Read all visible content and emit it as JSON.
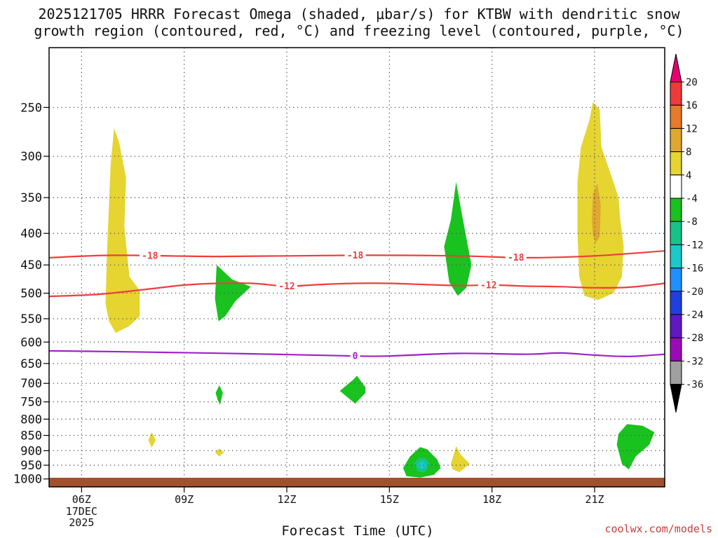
{
  "title": {
    "line1": "2025121705 HRRR Forecast Omega (shaded, μbar/s) for KTBW with dendritic snow",
    "line2": "growth region (contoured, red, °C) and freezing level (contoured, purple, °C)"
  },
  "credit": "coolwx.com/models",
  "chart_data": {
    "type": "contour",
    "xlabel": "Forecast Time (UTC)",
    "ylabel": "",
    "x_ticks": [
      {
        "hour": 6,
        "label": "06Z",
        "sub": [
          "17DEC",
          "2025"
        ]
      },
      {
        "hour": 9,
        "label": "09Z"
      },
      {
        "hour": 12,
        "label": "12Z"
      },
      {
        "hour": 15,
        "label": "15Z"
      },
      {
        "hour": 18,
        "label": "18Z"
      },
      {
        "hour": 21,
        "label": "21Z"
      }
    ],
    "xlim": [
      5.05,
      23.05
    ],
    "ylim": [
      1030,
      200
    ],
    "y_scale": "log-pressure",
    "y_ticks": [
      250,
      300,
      350,
      400,
      450,
      500,
      550,
      600,
      650,
      700,
      750,
      800,
      850,
      900,
      950,
      1000
    ],
    "grid": true,
    "ground_color": "#a0522d",
    "colorbar": {
      "labels": [
        "20",
        "16",
        "12",
        "8",
        "4",
        "-4",
        "-8",
        "-12",
        "-16",
        "-20",
        "-24",
        "-28",
        "-32",
        "-36"
      ],
      "colors": [
        "#e8006e",
        "#ef3a3a",
        "#e87a28",
        "#e0a830",
        "#e6d430",
        "#ffffff",
        "#19c21e",
        "#16c48a",
        "#1ac9c9",
        "#1e90ff",
        "#1f3fe0",
        "#6018c0",
        "#9c0ab8",
        "#a0a0a0",
        "#000000"
      ]
    },
    "contours": [
      {
        "name": "-18",
        "color": "#f03c3c",
        "label_hours": [
          8.0,
          14.0,
          18.7
        ],
        "points": [
          [
            5.05,
            438
          ],
          [
            7,
            434
          ],
          [
            10,
            436
          ],
          [
            14,
            434
          ],
          [
            17,
            435
          ],
          [
            19,
            438
          ],
          [
            21,
            435
          ],
          [
            23.05,
            427
          ]
        ]
      },
      {
        "name": "-12",
        "color": "#f03c3c",
        "label_hours": [
          12.0,
          17.9
        ],
        "points": [
          [
            5.05,
            506
          ],
          [
            6.5,
            502
          ],
          [
            8,
            492
          ],
          [
            9,
            485
          ],
          [
            10,
            482
          ],
          [
            11,
            482
          ],
          [
            12,
            487
          ],
          [
            13,
            484
          ],
          [
            14,
            482
          ],
          [
            15,
            482
          ],
          [
            16,
            484
          ],
          [
            17,
            486
          ],
          [
            18,
            485
          ],
          [
            19,
            487
          ],
          [
            20,
            488
          ],
          [
            21,
            490
          ],
          [
            22,
            489
          ],
          [
            23.05,
            482
          ]
        ]
      },
      {
        "name": "0",
        "color": "#a020c8",
        "label_hours": [
          14.0
        ],
        "points": [
          [
            5.05,
            620
          ],
          [
            8,
            623
          ],
          [
            11,
            627
          ],
          [
            14,
            632
          ],
          [
            15,
            632
          ],
          [
            17,
            626
          ],
          [
            19,
            628
          ],
          [
            20,
            625
          ],
          [
            21,
            630
          ],
          [
            22,
            633
          ],
          [
            23.05,
            628
          ]
        ]
      }
    ],
    "shaded_regions": [
      {
        "value": "4",
        "color": "#e6d430",
        "points": [
          [
            6.7,
            520
          ],
          [
            6.75,
            420
          ],
          [
            6.85,
            310
          ],
          [
            6.95,
            270
          ],
          [
            7.1,
            285
          ],
          [
            7.3,
            325
          ],
          [
            7.25,
            390
          ],
          [
            7.4,
            470
          ],
          [
            7.7,
            495
          ],
          [
            7.7,
            545
          ],
          [
            7.4,
            565
          ],
          [
            7.0,
            580
          ],
          [
            6.8,
            555
          ]
        ]
      },
      {
        "value": "4",
        "color": "#e6d430",
        "points": [
          [
            20.55,
            470
          ],
          [
            20.5,
            400
          ],
          [
            20.5,
            330
          ],
          [
            20.6,
            290
          ],
          [
            20.85,
            262
          ],
          [
            20.95,
            245
          ],
          [
            21.15,
            252
          ],
          [
            21.2,
            290
          ],
          [
            21.55,
            330
          ],
          [
            21.7,
            350
          ],
          [
            21.75,
            380
          ],
          [
            21.85,
            420
          ],
          [
            21.8,
            470
          ],
          [
            21.55,
            500
          ],
          [
            21.1,
            513
          ],
          [
            20.7,
            505
          ]
        ]
      },
      {
        "value": "8",
        "color": "#e0a830",
        "points": [
          [
            20.92,
            380
          ],
          [
            20.95,
            345
          ],
          [
            21.08,
            332
          ],
          [
            21.18,
            360
          ],
          [
            21.15,
            405
          ],
          [
            21.03,
            415
          ],
          [
            20.95,
            402
          ]
        ]
      },
      {
        "value": "4",
        "color": "#e6d430",
        "points": [
          [
            7.95,
            865
          ],
          [
            8.05,
            840
          ],
          [
            8.17,
            865
          ],
          [
            8.05,
            890
          ]
        ]
      },
      {
        "value": "4",
        "color": "#e6d430",
        "points": [
          [
            9.9,
            905
          ],
          [
            10.03,
            893
          ],
          [
            10.16,
            905
          ],
          [
            10.03,
            920
          ]
        ]
      },
      {
        "value": "4",
        "color": "#e6d430",
        "points": [
          [
            16.8,
            945
          ],
          [
            16.95,
            885
          ],
          [
            17.1,
            915
          ],
          [
            17.35,
            945
          ],
          [
            17.05,
            975
          ],
          [
            16.85,
            965
          ]
        ]
      },
      {
        "value": "-4",
        "color": "#19c21e",
        "points": [
          [
            9.9,
            510
          ],
          [
            9.95,
            450
          ],
          [
            10.4,
            475
          ],
          [
            10.95,
            488
          ],
          [
            10.5,
            515
          ],
          [
            10.2,
            545
          ],
          [
            10.0,
            555
          ]
        ]
      },
      {
        "value": "-4",
        "color": "#19c21e",
        "points": [
          [
            16.6,
            420
          ],
          [
            16.8,
            380
          ],
          [
            16.95,
            330
          ],
          [
            17.15,
            380
          ],
          [
            17.4,
            450
          ],
          [
            17.25,
            490
          ],
          [
            17.0,
            505
          ],
          [
            16.75,
            480
          ]
        ]
      },
      {
        "value": "-4",
        "color": "#19c21e",
        "points": [
          [
            9.92,
            725
          ],
          [
            10.03,
            705
          ],
          [
            10.13,
            725
          ],
          [
            10.05,
            758
          ],
          [
            9.98,
            745
          ]
        ]
      },
      {
        "value": "-4",
        "color": "#19c21e",
        "points": [
          [
            13.55,
            720
          ],
          [
            13.95,
            690
          ],
          [
            14.05,
            680
          ],
          [
            14.3,
            710
          ],
          [
            14.3,
            725
          ],
          [
            14.0,
            755
          ]
        ]
      },
      {
        "value": "-4",
        "color": "#19c21e",
        "points": [
          [
            15.4,
            960
          ],
          [
            15.6,
            920
          ],
          [
            15.9,
            888
          ],
          [
            16.1,
            895
          ],
          [
            16.4,
            930
          ],
          [
            16.5,
            960
          ],
          [
            16.3,
            985
          ],
          [
            15.9,
            995
          ],
          [
            15.5,
            990
          ]
        ]
      },
      {
        "value": "-8",
        "color": "#16c48a",
        "points": [
          [
            15.72,
            945
          ],
          [
            15.85,
            925
          ],
          [
            16.05,
            925
          ],
          [
            16.18,
            945
          ],
          [
            16.05,
            975
          ],
          [
            15.85,
            975
          ]
        ]
      },
      {
        "value": "-12",
        "color": "#1ac9c9",
        "points": [
          [
            15.8,
            950
          ],
          [
            15.95,
            935
          ],
          [
            16.1,
            950
          ],
          [
            15.95,
            965
          ]
        ]
      },
      {
        "value": "-4",
        "color": "#19c21e",
        "points": [
          [
            21.65,
            880
          ],
          [
            21.7,
            845
          ],
          [
            21.95,
            815
          ],
          [
            22.4,
            820
          ],
          [
            22.75,
            840
          ],
          [
            22.6,
            880
          ],
          [
            22.2,
            920
          ],
          [
            22.0,
            965
          ],
          [
            21.8,
            945
          ]
        ]
      }
    ]
  }
}
